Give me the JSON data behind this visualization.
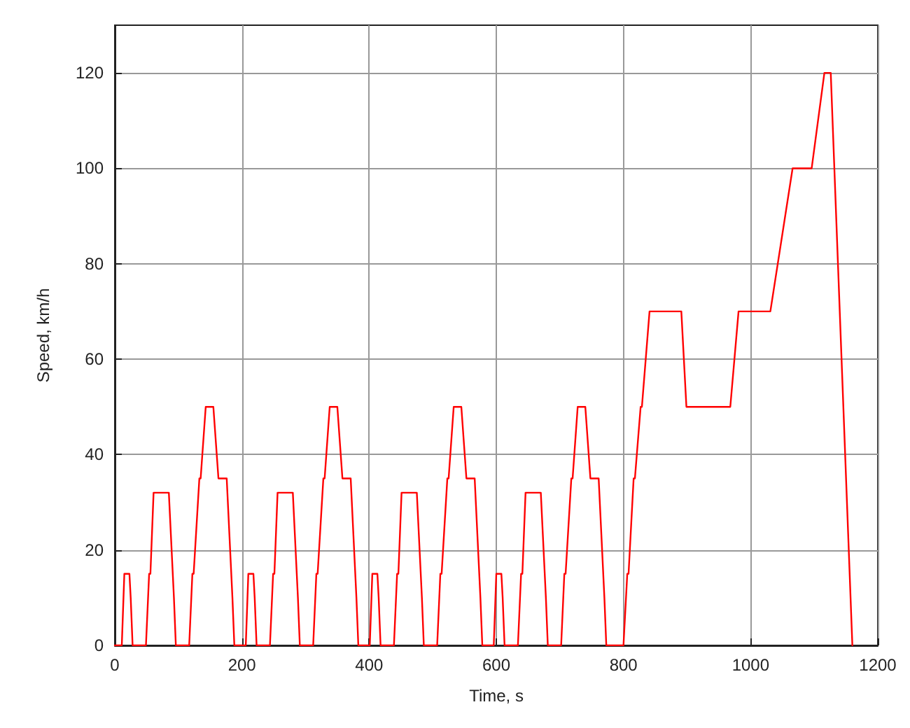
{
  "chart_data": {
    "type": "line",
    "xlabel": "Time, s",
    "ylabel": "Speed, km/h",
    "xlim": [
      0,
      1200
    ],
    "xticks": [
      0,
      200,
      400,
      600,
      800,
      1000,
      1200
    ],
    "ylim": [
      0,
      130
    ],
    "yticks": [
      0,
      20,
      40,
      60,
      80,
      100,
      120
    ],
    "grid": true,
    "marker": "none",
    "line_style": "solid",
    "series": [
      {
        "color": "#ff0000",
        "x": [
          0,
          11,
          15,
          23,
          25,
          28,
          49,
          54,
          56,
          61,
          85,
          93,
          96,
          117,
          122,
          124,
          133,
          135,
          143,
          155,
          163,
          176,
          185,
          188,
          195,
          206,
          210,
          218,
          220,
          223,
          244,
          249,
          251,
          256,
          280,
          288,
          291,
          312,
          317,
          319,
          328,
          330,
          338,
          350,
          358,
          371,
          380,
          383,
          390,
          401,
          405,
          413,
          415,
          418,
          439,
          444,
          446,
          451,
          475,
          483,
          486,
          507,
          512,
          514,
          523,
          525,
          533,
          545,
          553,
          566,
          575,
          578,
          585,
          596,
          600,
          608,
          610,
          613,
          634,
          639,
          641,
          646,
          670,
          678,
          681,
          702,
          707,
          709,
          718,
          720,
          728,
          740,
          748,
          761,
          770,
          773,
          780,
          800,
          806,
          808,
          816,
          818,
          827,
          829,
          841,
          891,
          899,
          968,
          981,
          1031,
          1066,
          1096,
          1116,
          1126,
          1160
        ],
        "values": [
          0,
          0,
          15,
          15,
          10,
          0,
          0,
          15,
          15,
          32,
          32,
          10,
          0,
          0,
          15,
          15,
          35,
          35,
          50,
          50,
          35,
          35,
          10,
          0,
          0,
          0,
          15,
          15,
          10,
          0,
          0,
          15,
          15,
          32,
          32,
          10,
          0,
          0,
          15,
          15,
          35,
          35,
          50,
          50,
          35,
          35,
          10,
          0,
          0,
          0,
          15,
          15,
          10,
          0,
          0,
          15,
          15,
          32,
          32,
          10,
          0,
          0,
          15,
          15,
          35,
          35,
          50,
          50,
          35,
          35,
          10,
          0,
          0,
          0,
          15,
          15,
          10,
          0,
          0,
          15,
          15,
          32,
          32,
          10,
          0,
          0,
          15,
          15,
          35,
          35,
          50,
          50,
          35,
          35,
          10,
          0,
          0,
          0,
          15,
          15,
          35,
          35,
          50,
          50,
          70,
          70,
          50,
          50,
          70,
          70,
          100,
          100,
          120,
          120,
          0
        ]
      }
    ]
  }
}
